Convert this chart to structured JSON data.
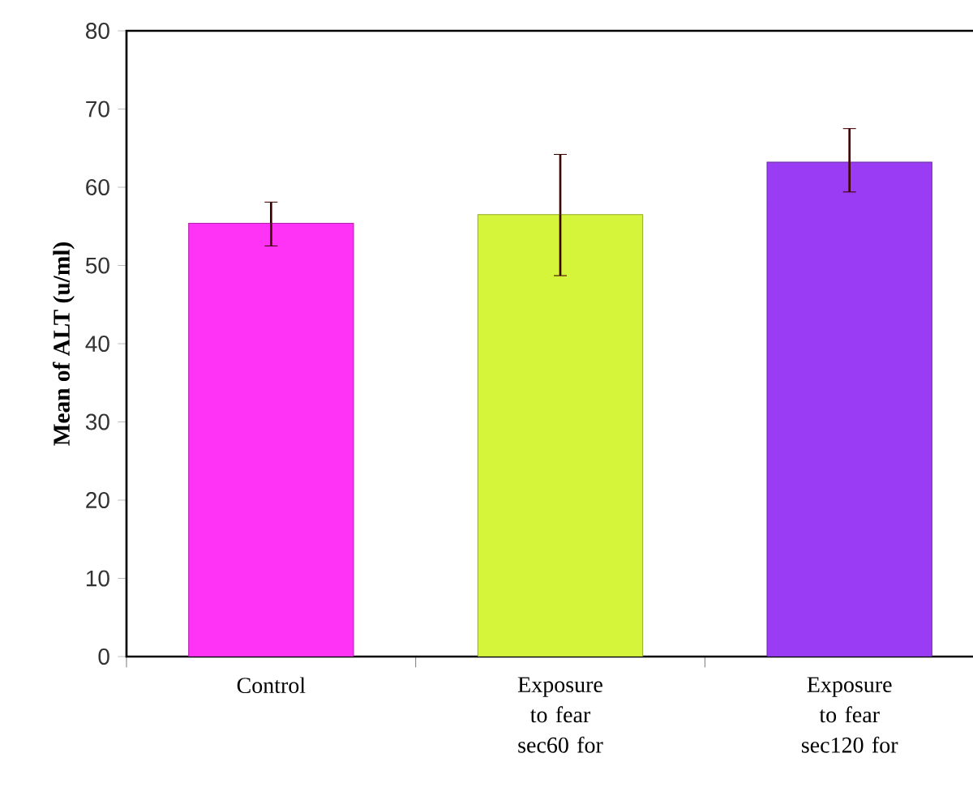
{
  "chart_data": {
    "type": "bar",
    "ylabel": "Mean of ALT (u/ml)",
    "categories": [
      "Control",
      "Exposure to fear sec60 for",
      "Exposure to fear sec120 for"
    ],
    "values": [
      55.4,
      56.5,
      63.2
    ],
    "colors": [
      "#ff33f5",
      "#d4f53a",
      "#9b3cf5"
    ],
    "errors": [
      [
        52.5,
        58.1
      ],
      [
        48.7,
        64.2
      ],
      [
        59.4,
        67.5
      ]
    ],
    "ylim": [
      0,
      80
    ],
    "yticks": [
      0,
      10,
      20,
      30,
      40,
      50,
      60,
      70,
      80
    ],
    "grid": false
  }
}
